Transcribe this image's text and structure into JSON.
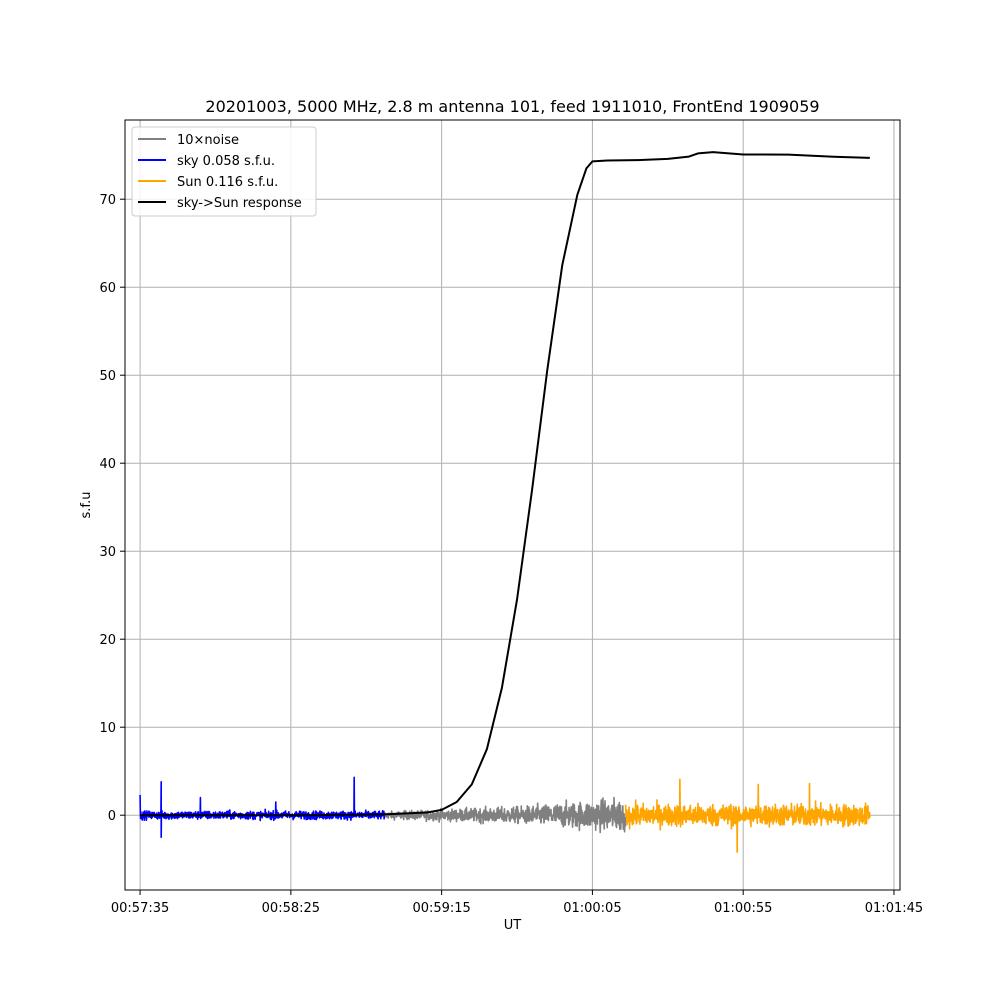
{
  "chart_data": {
    "type": "line",
    "title": "20201003, 5000 MHz, 2.8 m antenna 101, feed 1911010, FrontEnd 1909059",
    "xlabel": "UT",
    "ylabel": "s.f.u",
    "x_unit": "UT time (HH:MM:SS)",
    "xlim": [
      "00:57:30",
      "01:01:47"
    ],
    "ylim": [
      -8.5,
      79
    ],
    "x_ticks": [
      "00:57:35",
      "00:58:25",
      "00:59:15",
      "01:00:05",
      "01:00:55",
      "01:01:45"
    ],
    "y_ticks": [
      0,
      10,
      20,
      30,
      40,
      50,
      60,
      70
    ],
    "grid": true,
    "legend_position": "top-left",
    "series": [
      {
        "name": "10×noise",
        "color": "#808080",
        "style": "noise",
        "x_range": [
          "00:58:56",
          "01:00:16"
        ],
        "amplitude": [
          [
            "00:58:56",
            0.5
          ],
          [
            "00:59:40",
            1.2
          ],
          [
            "01:00:16",
            2.5
          ]
        ]
      },
      {
        "name": "sky 0.058 s.f.u.",
        "color": "#0000ff",
        "style": "noise",
        "x_range": [
          "00:57:35",
          "00:58:56"
        ],
        "amplitude": [
          [
            "00:57:35",
            0.6
          ],
          [
            "00:58:56",
            0.6
          ]
        ],
        "spikes": [
          [
            "00:57:35",
            2.3
          ],
          [
            "00:57:42",
            3.8
          ],
          [
            "00:57:42",
            -2.5
          ],
          [
            "00:57:55",
            2.0
          ],
          [
            "00:58:20",
            1.5
          ],
          [
            "00:58:46",
            4.3
          ]
        ]
      },
      {
        "name": "Sun 0.116 s.f.u.",
        "color": "#ffa500",
        "style": "noise",
        "x_range": [
          "01:00:16",
          "01:01:37"
        ],
        "amplitude": [
          [
            "01:00:16",
            1.6
          ],
          [
            "01:01:37",
            1.6
          ]
        ],
        "spikes": [
          [
            "01:00:34",
            4.1
          ],
          [
            "01:00:53",
            -4.2
          ],
          [
            "01:01:00",
            3.5
          ],
          [
            "01:01:17",
            3.6
          ]
        ]
      },
      {
        "name": "sky->Sun response",
        "color": "#000000",
        "style": "line",
        "points": [
          [
            "00:57:35",
            0.0
          ],
          [
            "00:57:50",
            0.0
          ],
          [
            "00:58:30",
            0.0
          ],
          [
            "00:58:56",
            0.1
          ],
          [
            "00:59:10",
            0.3
          ],
          [
            "00:59:15",
            0.6
          ],
          [
            "00:59:20",
            1.5
          ],
          [
            "00:59:25",
            3.5
          ],
          [
            "00:59:30",
            7.5
          ],
          [
            "00:59:35",
            14.5
          ],
          [
            "00:59:40",
            24.5
          ],
          [
            "00:59:45",
            37.0
          ],
          [
            "00:59:50",
            50.5
          ],
          [
            "00:59:55",
            62.5
          ],
          [
            "01:00:00",
            70.5
          ],
          [
            "01:00:03",
            73.5
          ],
          [
            "01:00:05",
            74.3
          ],
          [
            "01:00:10",
            74.4
          ],
          [
            "01:00:20",
            74.5
          ],
          [
            "01:00:30",
            74.6
          ],
          [
            "01:00:37",
            74.9
          ],
          [
            "01:00:40",
            75.2
          ],
          [
            "01:00:45",
            75.3
          ],
          [
            "01:00:55",
            75.1
          ],
          [
            "01:01:10",
            75.0
          ],
          [
            "01:01:25",
            74.8
          ],
          [
            "01:01:37",
            74.7
          ]
        ]
      }
    ]
  }
}
